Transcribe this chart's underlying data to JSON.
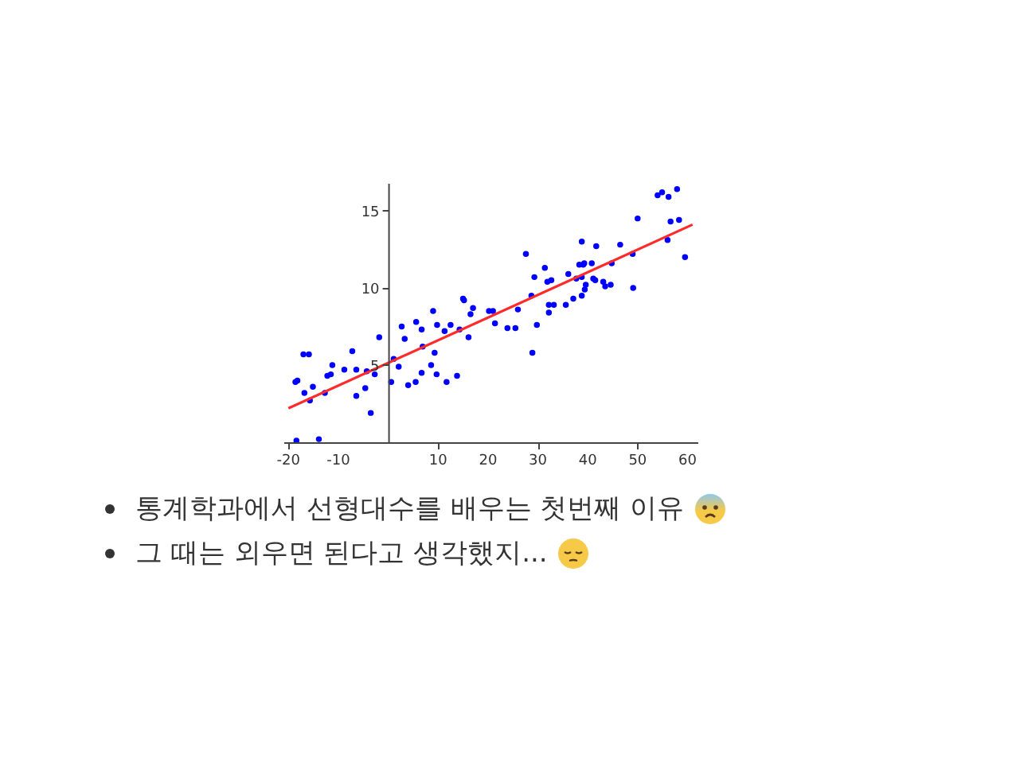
{
  "chart_data": {
    "type": "scatter",
    "annotations": [
      "통계학과에서 선형대수를 배우는 첫번째 이유",
      "그 때는 외우면 된다고 생각했지..."
    ],
    "xlim": [
      -21,
      62
    ],
    "ylim": [
      0,
      16.8
    ],
    "xticks": [
      -20,
      -10,
      10,
      20,
      30,
      40,
      50,
      60
    ],
    "yticks": [
      5,
      10,
      15
    ],
    "grid": false,
    "series": [
      {
        "type": "scatter",
        "color": "#0000ff",
        "marker": "circle",
        "x": [
          -18.6,
          -18.2,
          -17.0,
          -15.9,
          -16.8,
          -15.7,
          -15.1,
          -18.4,
          -13.9,
          -12.7,
          -12.2,
          -11.5,
          -11.2,
          -8.8,
          -7.2,
          -6.4,
          -6.4,
          -4.6,
          -4.3,
          -3.5,
          -2.7,
          -1.8,
          0.6,
          1.1,
          2.1,
          2.7,
          3.3,
          4.0,
          5.5,
          5.6,
          6.7,
          6.7,
          6.9,
          8.6,
          9.0,
          9.3,
          9.7,
          9.8,
          11.3,
          11.7,
          12.5,
          13.8,
          14.3,
          15.0,
          15.2,
          16.1,
          16.5,
          17.0,
          20.2,
          21.0,
          21.4,
          23.9,
          25.5,
          26.0,
          27.6,
          28.7,
          28.9,
          29.3,
          29.8,
          31.4,
          31.9,
          32.2,
          32.2,
          32.7,
          33.2,
          35.6,
          36.1,
          37.1,
          37.7,
          38.3,
          38.8,
          38.8,
          38.8,
          39.1,
          39.3,
          39.4,
          39.6,
          40.8,
          41.1,
          41.5,
          41.7,
          43.1,
          43.5,
          44.6,
          44.8,
          46.5,
          49.0,
          49.1,
          50.0,
          54.0,
          54.9,
          56.0,
          56.2,
          56.6,
          57.9,
          58.3,
          59.5
        ],
        "values": [
          3.9,
          4.0,
          5.7,
          5.7,
          3.2,
          2.7,
          3.6,
          0.1,
          0.2,
          3.2,
          4.3,
          4.4,
          5.0,
          4.7,
          5.9,
          4.7,
          3.0,
          3.5,
          4.6,
          1.9,
          4.4,
          6.8,
          3.9,
          5.4,
          4.9,
          7.5,
          6.7,
          3.7,
          3.9,
          7.8,
          7.3,
          4.5,
          6.2,
          5.0,
          8.5,
          5.8,
          4.4,
          7.6,
          7.2,
          3.9,
          7.6,
          4.3,
          7.3,
          9.3,
          9.2,
          6.8,
          8.3,
          8.7,
          8.5,
          8.5,
          7.7,
          7.4,
          7.4,
          8.6,
          12.2,
          9.5,
          5.8,
          10.7,
          7.6,
          11.3,
          10.4,
          8.9,
          8.4,
          10.5,
          8.9,
          8.9,
          10.9,
          9.3,
          10.6,
          11.5,
          13.0,
          10.7,
          9.5,
          11.5,
          11.6,
          9.9,
          10.2,
          11.6,
          10.6,
          10.5,
          12.7,
          10.4,
          10.1,
          10.2,
          11.6,
          12.8,
          12.2,
          10.0,
          14.5,
          16.0,
          16.2,
          13.1,
          15.9,
          14.3,
          16.4,
          14.4,
          12.0
        ]
      },
      {
        "type": "line",
        "color": "#ff2a2a",
        "x": [
          -20,
          61
        ],
        "values": [
          2.2,
          14.1
        ]
      }
    ]
  }
}
